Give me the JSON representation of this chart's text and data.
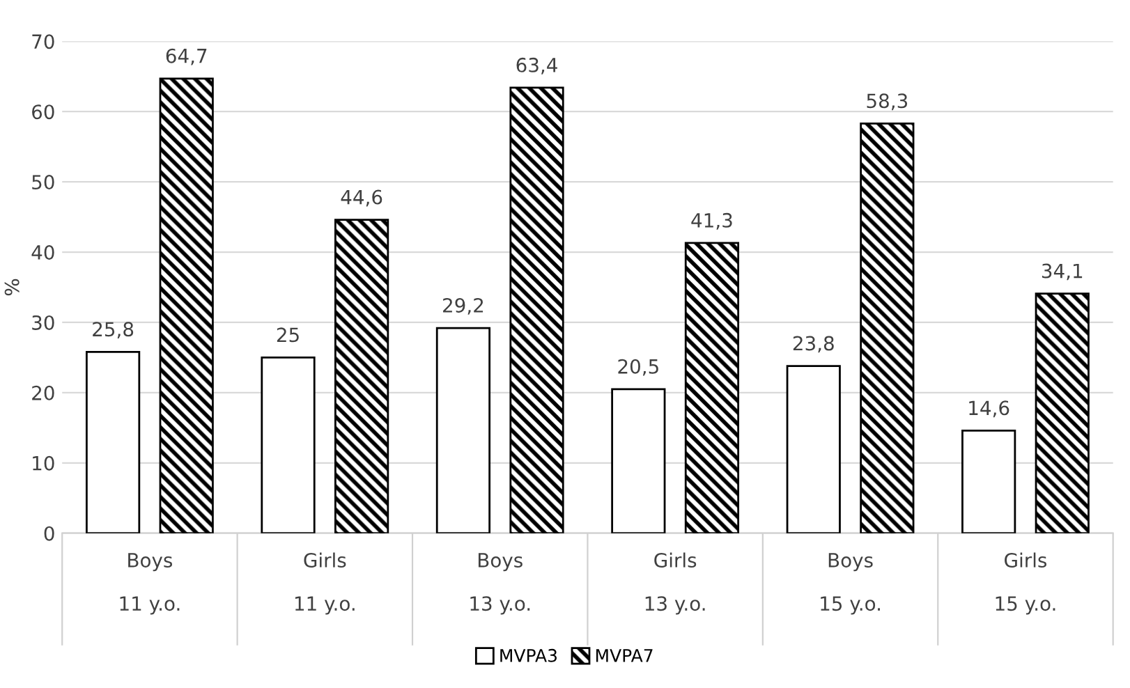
{
  "chart_data": {
    "type": "bar",
    "ylabel": "%",
    "categories": [
      "Boys\n\n11 y.o.",
      "Girls\n\n11 y.o.",
      "Boys\n\n13 y.o.",
      "Girls\n\n13 y.o.",
      "Boys\n\n15 y.o.",
      "Girls\n\n15 y.o."
    ],
    "series": [
      {
        "name": "MVPA3",
        "color": "#ffffff",
        "values": [
          25.8,
          25,
          29.2,
          20.5,
          23.8,
          14.6
        ],
        "value_labels": [
          "25,8",
          "25",
          "29,2",
          "20,5",
          "23,8",
          "14,6"
        ]
      },
      {
        "name": "MVPA7",
        "color": "#000000",
        "values": [
          64.7,
          44.6,
          63.4,
          41.3,
          58.3,
          34.1
        ],
        "value_labels": [
          "64,7",
          "44,6",
          "63,4",
          "41,3",
          "58,3",
          "34,1"
        ]
      }
    ],
    "ylim": [
      0,
      70
    ],
    "yticks": [
      0,
      10,
      20,
      30,
      40,
      50,
      60,
      70
    ],
    "grid": "y",
    "legend": "bottom"
  }
}
